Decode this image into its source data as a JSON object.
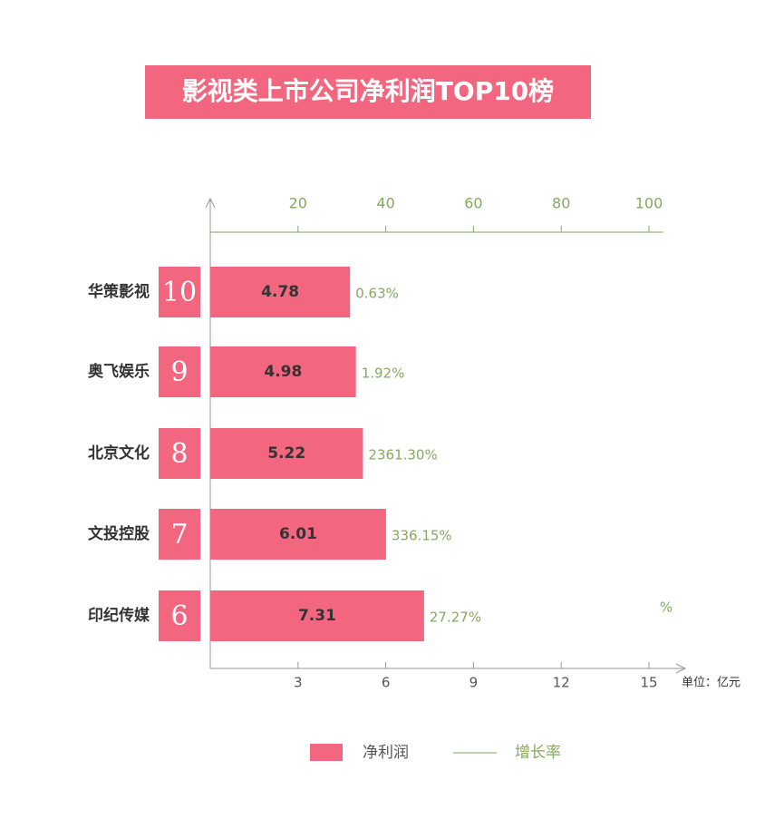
{
  "chart_data": {
    "type": "bar",
    "orientation": "horizontal",
    "title": "影视类上市公司净利润TOP10榜",
    "categories": [
      "华策影视",
      "奥飞娱乐",
      "北京文化",
      "文投控股",
      "印纪传媒"
    ],
    "ranks": [
      10,
      9,
      8,
      7,
      6
    ],
    "series": [
      {
        "name": "净利润",
        "color": "#f2677f",
        "values": [
          4.78,
          4.98,
          5.22,
          6.01,
          7.31
        ]
      },
      {
        "name": "增长率",
        "color": "#86a85f",
        "axis": "x2",
        "values": [
          0.63,
          1.92,
          2361.3,
          336.15,
          27.27
        ],
        "value_labels": [
          "0.63%",
          "1.92%",
          "2361.30%",
          "336.15%",
          "27.27%"
        ]
      }
    ],
    "xlim": [
      0,
      15
    ],
    "xticks": [
      3,
      6,
      9,
      12,
      15
    ],
    "x_unit": "单位：亿元",
    "x2lim": [
      0,
      100
    ],
    "x2ticks": [
      20,
      40,
      60,
      80,
      100
    ],
    "x2_unit": "%"
  }
}
